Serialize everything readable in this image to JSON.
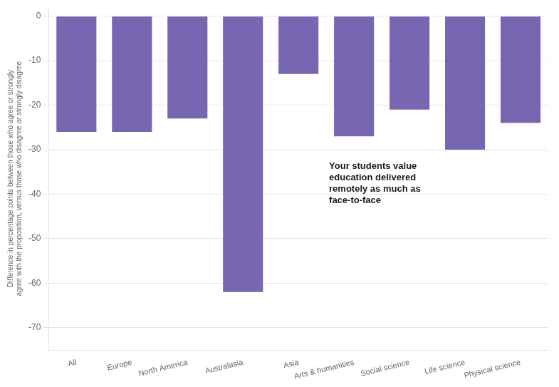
{
  "chart_data": {
    "type": "bar",
    "categories": [
      "All",
      "Europe",
      "North America",
      "Australasia",
      "Asia",
      "Arts & humanities",
      "Social science",
      "Life science",
      "Physical science"
    ],
    "values": [
      -26,
      -26,
      -23,
      -62,
      -13,
      -27,
      -21,
      -30,
      -24
    ],
    "color": "#7866b3",
    "ylim": [
      -75,
      2
    ],
    "yticks": [
      0,
      -10,
      -20,
      -30,
      -40,
      -50,
      -60,
      -70
    ],
    "y_label": [
      "Difference in percentage points between those who agree or strongly",
      "agree with the proposition, versus those who disagree or strongly disagree"
    ],
    "annotation": "Your students value\neducation delivered\nremotely as much as\nface-to-face",
    "grid": true
  }
}
